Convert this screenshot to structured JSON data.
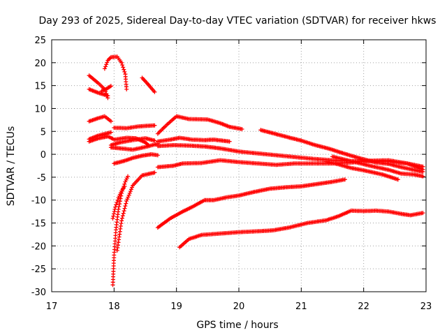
{
  "chart_data": {
    "type": "scatter",
    "title": "Day 293 of 2025, Sidereal Day-to-day VTEC variation (SDTVAR) for receiver hkws",
    "xlabel": "GPS time / hours",
    "ylabel": "SDTVAR / TECUs",
    "xlim": [
      17,
      23
    ],
    "ylim": [
      -30,
      25
    ],
    "xticks": [
      "17",
      "18",
      "19",
      "20",
      "21",
      "22",
      "23"
    ],
    "yticks": [
      "-30",
      "-25",
      "-20",
      "-15",
      "-10",
      "-5",
      "0",
      "5",
      "10",
      "15",
      "20",
      "25"
    ],
    "grid": true,
    "marker": "+",
    "color": "#ff0000",
    "step": 0.02,
    "tracks": [
      {
        "name": "s1",
        "points": [
          [
            17.6,
            17.2
          ],
          [
            17.75,
            15.5
          ],
          [
            17.85,
            14.2
          ],
          [
            17.9,
            12.3
          ]
        ]
      },
      {
        "name": "s2",
        "points": [
          [
            17.6,
            14.2
          ],
          [
            17.75,
            13.4
          ],
          [
            17.9,
            12.8
          ]
        ]
      },
      {
        "name": "s3",
        "points": [
          [
            17.8,
            13.8
          ],
          [
            17.88,
            14.3
          ],
          [
            17.95,
            14.9
          ]
        ]
      },
      {
        "name": "s4",
        "points": [
          [
            17.85,
            18.7
          ],
          [
            17.9,
            20.5
          ],
          [
            17.95,
            21.2
          ],
          [
            18.05,
            21.3
          ],
          [
            18.12,
            20.0
          ],
          [
            18.18,
            17.5
          ],
          [
            18.2,
            14.2
          ]
        ]
      },
      {
        "name": "s5",
        "points": [
          [
            18.45,
            16.7
          ],
          [
            18.55,
            15.2
          ],
          [
            18.65,
            13.6
          ]
        ]
      },
      {
        "name": "s6",
        "points": [
          [
            17.6,
            7.2
          ],
          [
            17.75,
            7.9
          ],
          [
            17.85,
            8.3
          ],
          [
            17.95,
            7.2
          ]
        ]
      },
      {
        "name": "s7",
        "points": [
          [
            17.6,
            3.3
          ],
          [
            17.75,
            4.1
          ],
          [
            17.95,
            4.8
          ]
        ]
      },
      {
        "name": "s8",
        "points": [
          [
            17.6,
            2.8
          ],
          [
            17.75,
            3.5
          ],
          [
            17.9,
            3.9
          ],
          [
            17.98,
            3.4
          ]
        ]
      },
      {
        "name": "s9",
        "points": [
          [
            17.95,
            2.0
          ],
          [
            18.1,
            2.6
          ],
          [
            18.3,
            3.1
          ],
          [
            18.5,
            3.5
          ],
          [
            18.65,
            3.0
          ]
        ]
      },
      {
        "name": "s10",
        "points": [
          [
            17.95,
            1.5
          ],
          [
            18.1,
            1.3
          ],
          [
            18.3,
            1.0
          ],
          [
            18.5,
            1.6
          ],
          [
            18.7,
            2.3
          ]
        ]
      },
      {
        "name": "s11",
        "points": [
          [
            18.0,
            5.8
          ],
          [
            18.2,
            5.7
          ],
          [
            18.4,
            6.1
          ],
          [
            18.65,
            6.3
          ]
        ]
      },
      {
        "name": "s12",
        "points": [
          [
            18.0,
            3.2
          ],
          [
            18.2,
            3.6
          ],
          [
            18.35,
            3.5
          ],
          [
            18.5,
            2.6
          ],
          [
            18.55,
            2.0
          ]
        ]
      },
      {
        "name": "s13",
        "points": [
          [
            18.0,
            -2.0
          ],
          [
            18.15,
            -1.5
          ],
          [
            18.3,
            -0.8
          ],
          [
            18.45,
            -0.3
          ],
          [
            18.6,
            0.0
          ],
          [
            18.7,
            -0.2
          ]
        ]
      },
      {
        "name": "s14",
        "points": [
          [
            17.98,
            -28.5
          ],
          [
            18.0,
            -22.0
          ],
          [
            18.03,
            -16.5
          ],
          [
            18.07,
            -12.0
          ],
          [
            18.12,
            -8.5
          ],
          [
            18.18,
            -6.0
          ],
          [
            18.22,
            -4.8
          ]
        ]
      },
      {
        "name": "s15",
        "points": [
          [
            17.98,
            -14.0
          ],
          [
            18.02,
            -11.5
          ],
          [
            18.07,
            -9.5
          ],
          [
            18.12,
            -8.0
          ],
          [
            18.17,
            -7.0
          ]
        ]
      },
      {
        "name": "s16",
        "points": [
          [
            18.05,
            -21.0
          ],
          [
            18.12,
            -14.5
          ],
          [
            18.2,
            -10.2
          ],
          [
            18.3,
            -6.8
          ],
          [
            18.45,
            -4.6
          ],
          [
            18.65,
            -4.0
          ]
        ]
      },
      {
        "name": "s17",
        "points": [
          [
            18.7,
            -16.0
          ],
          [
            18.9,
            -14.0
          ],
          [
            19.1,
            -12.5
          ],
          [
            19.25,
            -11.5
          ],
          [
            19.45,
            -10.0
          ],
          [
            19.6,
            -10.0
          ],
          [
            19.8,
            -9.4
          ],
          [
            20.0,
            -9.0
          ],
          [
            20.25,
            -8.2
          ],
          [
            20.5,
            -7.5
          ],
          [
            20.75,
            -7.2
          ],
          [
            21.0,
            -7.0
          ],
          [
            21.25,
            -6.5
          ],
          [
            21.5,
            -6.0
          ],
          [
            21.7,
            -5.5
          ]
        ]
      },
      {
        "name": "s18",
        "points": [
          [
            19.05,
            -20.3
          ],
          [
            19.2,
            -18.5
          ],
          [
            19.4,
            -17.6
          ],
          [
            19.7,
            -17.3
          ],
          [
            20.0,
            -17.0
          ],
          [
            20.3,
            -16.8
          ],
          [
            20.55,
            -16.6
          ],
          [
            20.8,
            -16.0
          ],
          [
            21.1,
            -15.0
          ],
          [
            21.4,
            -14.4
          ],
          [
            21.6,
            -13.5
          ],
          [
            21.8,
            -12.3
          ],
          [
            22.0,
            -12.4
          ],
          [
            22.2,
            -12.3
          ],
          [
            22.4,
            -12.5
          ],
          [
            22.6,
            -13.0
          ],
          [
            22.75,
            -13.3
          ],
          [
            22.95,
            -12.8
          ]
        ]
      },
      {
        "name": "s19",
        "points": [
          [
            18.7,
            4.5
          ],
          [
            18.85,
            6.5
          ],
          [
            19.0,
            8.3
          ],
          [
            19.2,
            7.7
          ],
          [
            19.5,
            7.6
          ],
          [
            19.7,
            6.8
          ],
          [
            19.85,
            6.0
          ],
          [
            20.05,
            5.5
          ]
        ]
      },
      {
        "name": "s20",
        "points": [
          [
            18.7,
            2.8
          ],
          [
            18.9,
            3.2
          ],
          [
            19.05,
            3.6
          ],
          [
            19.25,
            3.2
          ],
          [
            19.45,
            3.1
          ],
          [
            19.6,
            3.2
          ],
          [
            19.85,
            2.8
          ]
        ]
      },
      {
        "name": "s21",
        "points": [
          [
            18.7,
            1.8
          ],
          [
            18.95,
            2.0
          ],
          [
            19.2,
            1.9
          ],
          [
            19.45,
            1.7
          ],
          [
            19.7,
            1.3
          ],
          [
            20.0,
            0.6
          ],
          [
            20.3,
            0.2
          ],
          [
            20.6,
            -0.2
          ],
          [
            20.9,
            -0.6
          ],
          [
            21.2,
            -1.0
          ],
          [
            21.5,
            -1.3
          ],
          [
            21.8,
            -1.5
          ],
          [
            22.1,
            -1.5
          ],
          [
            22.4,
            -1.6
          ],
          [
            22.7,
            -2.0
          ],
          [
            22.95,
            -2.7
          ]
        ]
      },
      {
        "name": "s22",
        "points": [
          [
            18.7,
            -2.8
          ],
          [
            18.95,
            -2.5
          ],
          [
            19.1,
            -2.0
          ],
          [
            19.4,
            -1.9
          ],
          [
            19.7,
            -1.3
          ],
          [
            20.0,
            -1.7
          ],
          [
            20.3,
            -2.0
          ],
          [
            20.6,
            -2.3
          ],
          [
            20.9,
            -2.0
          ],
          [
            21.2,
            -2.0
          ],
          [
            21.5,
            -2.0
          ],
          [
            21.8,
            -1.8
          ],
          [
            22.1,
            -1.4
          ],
          [
            22.4,
            -1.3
          ],
          [
            22.7,
            -2.0
          ],
          [
            22.95,
            -3.3
          ]
        ]
      },
      {
        "name": "s23",
        "points": [
          [
            20.35,
            5.3
          ],
          [
            20.6,
            4.4
          ],
          [
            20.85,
            3.5
          ],
          [
            21.0,
            3.0
          ],
          [
            21.2,
            2.1
          ],
          [
            21.45,
            1.2
          ],
          [
            21.7,
            0.1
          ],
          [
            21.95,
            -0.9
          ],
          [
            22.2,
            -1.8
          ],
          [
            22.4,
            -2.1
          ],
          [
            22.6,
            -2.8
          ],
          [
            22.8,
            -3.4
          ],
          [
            22.95,
            -3.8
          ]
        ]
      },
      {
        "name": "s24",
        "points": [
          [
            21.5,
            -0.5
          ],
          [
            21.8,
            -1.5
          ],
          [
            22.1,
            -2.5
          ],
          [
            22.4,
            -3.4
          ],
          [
            22.6,
            -4.2
          ],
          [
            22.8,
            -4.4
          ],
          [
            22.95,
            -4.8
          ]
        ]
      },
      {
        "name": "s25",
        "points": [
          [
            21.4,
            -1.6
          ],
          [
            21.6,
            -2.2
          ],
          [
            21.8,
            -3.0
          ],
          [
            22.0,
            -3.5
          ],
          [
            22.3,
            -4.4
          ],
          [
            22.55,
            -5.5
          ]
        ]
      }
    ]
  }
}
